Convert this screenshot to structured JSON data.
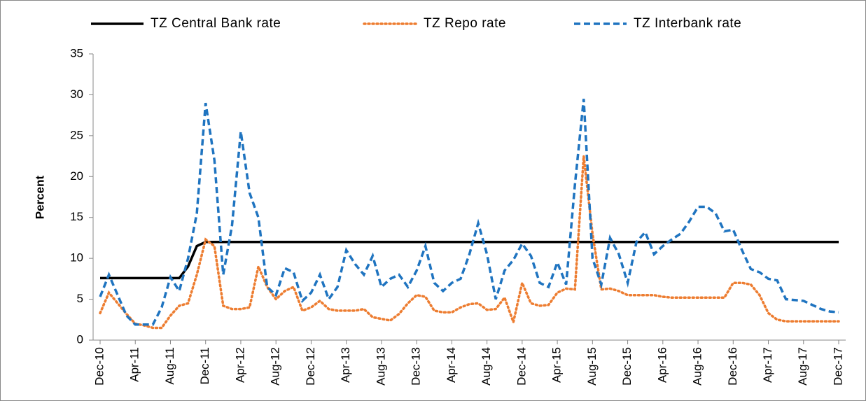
{
  "chart_data": {
    "type": "line",
    "y_label": "Percent",
    "categories": [
      "Dec-10",
      null,
      null,
      null,
      "Apr-11",
      null,
      null,
      null,
      "Aug-11",
      null,
      null,
      null,
      "Dec-11",
      null,
      null,
      null,
      "Apr-12",
      null,
      null,
      null,
      "Aug-12",
      null,
      null,
      null,
      "Dec-12",
      null,
      null,
      null,
      "Apr-13",
      null,
      null,
      null,
      "Aug-13",
      null,
      null,
      null,
      "Dec-13",
      null,
      null,
      null,
      "Apr-14",
      null,
      null,
      null,
      "Aug-14",
      null,
      null,
      null,
      "Dec-14",
      null,
      null,
      null,
      "Apr-15",
      null,
      null,
      null,
      "Aug-15",
      null,
      null,
      null,
      "Dec-15",
      null,
      null,
      null,
      "Apr-16",
      null,
      null,
      null,
      "Aug-16",
      null,
      null,
      null,
      "Dec-16",
      null,
      null,
      null,
      "Apr-17",
      null,
      null,
      null,
      "Aug-17",
      null,
      null,
      null,
      "Dec-17"
    ],
    "series": [
      {
        "name": "TZ Central Bank rate",
        "color": "#000000",
        "style": "solid",
        "values": [
          7.58,
          7.58,
          7.58,
          7.58,
          7.58,
          7.58,
          7.58,
          7.58,
          7.58,
          7.58,
          9,
          11.5,
          12,
          12,
          12,
          12,
          12,
          12,
          12,
          12,
          12,
          12,
          12,
          12,
          12,
          12,
          12,
          12,
          12,
          12,
          12,
          12,
          12,
          12,
          12,
          12,
          12,
          12,
          12,
          12,
          12,
          12,
          12,
          12,
          12,
          12,
          12,
          12,
          12,
          12,
          12,
          12,
          12,
          12,
          12,
          12,
          12,
          12,
          12,
          12,
          12,
          12,
          12,
          12,
          12,
          12,
          12,
          12,
          12,
          12,
          12,
          12,
          12,
          12,
          12,
          12,
          12,
          12,
          12,
          12,
          12,
          12,
          12,
          12,
          12
        ]
      },
      {
        "name": "TZ Repo rate",
        "color": "#ed7d31",
        "style": "dotted",
        "values": [
          3.3,
          5.8,
          4.5,
          3.2,
          2,
          1.8,
          1.5,
          1.5,
          3,
          4.2,
          4.5,
          8,
          12.3,
          11.5,
          4.2,
          3.8,
          3.8,
          4,
          9,
          6.5,
          5,
          6,
          6.5,
          3.6,
          4,
          4.8,
          3.8,
          3.6,
          3.6,
          3.6,
          3.8,
          2.8,
          2.6,
          2.4,
          3.2,
          4.5,
          5.5,
          5.3,
          3.6,
          3.4,
          3.4,
          4,
          4.4,
          4.5,
          3.7,
          3.8,
          5.2,
          2.2,
          7,
          4.5,
          4.2,
          4.3,
          5.8,
          6.3,
          6.2,
          22.5,
          13,
          6.2,
          6.3,
          6,
          5.5,
          5.5,
          5.5,
          5.5,
          5.3,
          5.2,
          5.2,
          5.2,
          5.2,
          5.2,
          5.2,
          5.2,
          7,
          7,
          6.8,
          5.5,
          3.3,
          2.5,
          2.3,
          2.3,
          2.3,
          2.3,
          2.3,
          2.3,
          2.3
        ]
      },
      {
        "name": "TZ Interbank rate",
        "color": "#1f74c0",
        "style": "dashed",
        "values": [
          5.3,
          8,
          5.5,
          3,
          1.9,
          1.9,
          1.9,
          4,
          7.7,
          6,
          10,
          15.5,
          29,
          22,
          8,
          14,
          25.5,
          18,
          15,
          6.5,
          5.5,
          8.8,
          8.3,
          4.8,
          5.8,
          8,
          5,
          6.5,
          11,
          9.3,
          8,
          10.3,
          6.5,
          7.5,
          8,
          6.5,
          8.5,
          11.5,
          7,
          6,
          7,
          7.5,
          10.5,
          14.3,
          10.5,
          5,
          8.5,
          9.8,
          11.8,
          10.3,
          7,
          6.5,
          9.5,
          6.8,
          19,
          29.5,
          10,
          6.8,
          12.5,
          10.5,
          7,
          12,
          13.2,
          10.5,
          11.5,
          12.3,
          13,
          14.5,
          16.3,
          16.3,
          15.5,
          13.3,
          13.5,
          11,
          8.7,
          8.3,
          7.5,
          7.3,
          5,
          4.9,
          4.8,
          4.3,
          3.8,
          3.5,
          3.4
        ]
      }
    ],
    "ylim": [
      0,
      35
    ],
    "yticks": [
      0,
      5,
      10,
      15,
      20,
      25,
      30,
      35
    ],
    "grid": false,
    "legend": "top"
  }
}
